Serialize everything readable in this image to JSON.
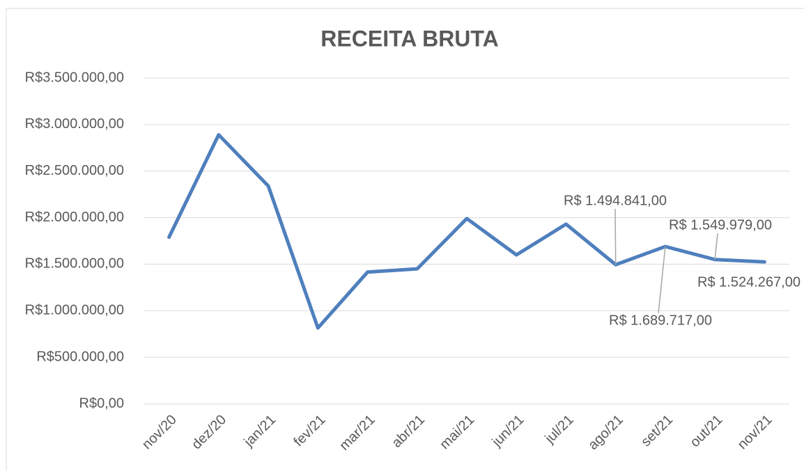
{
  "chart_data": {
    "type": "line",
    "title": "RECEITA BRUTA",
    "categories": [
      "nov/20",
      "dez/20",
      "jan/21",
      "fev/21",
      "mar/21",
      "abr/21",
      "mai/21",
      "jun/21",
      "jul/21",
      "ago/21",
      "set/21",
      "out/21",
      "nov/21"
    ],
    "series": [
      {
        "name": "Receita Bruta",
        "color": "#4f7fbd",
        "values": [
          1790000,
          2890000,
          2340000,
          815000,
          1415000,
          1450000,
          1990000,
          1600000,
          1930000,
          1494841,
          1689717,
          1549979,
          1524267
        ],
        "value_labels": [
          null,
          null,
          null,
          null,
          null,
          null,
          null,
          null,
          null,
          "R$ 1.494.841,00",
          "R$ 1.689.717,00",
          "R$ 1.549.979,00",
          "R$ 1.524.267,00"
        ]
      }
    ],
    "ylim": [
      0,
      3500000
    ],
    "yticks": [
      {
        "value": 0,
        "label": "R$0,00"
      },
      {
        "value": 500000,
        "label": "R$500.000,00"
      },
      {
        "value": 1000000,
        "label": "R$1.000.000,00"
      },
      {
        "value": 1500000,
        "label": "R$1.500.000,00"
      },
      {
        "value": 2000000,
        "label": "R$2.000.000,00"
      },
      {
        "value": 2500000,
        "label": "R$2.500.000,00"
      },
      {
        "value": 3000000,
        "label": "R$3.000.000,00"
      },
      {
        "value": 3500000,
        "label": "R$3.500.000,00"
      }
    ],
    "grid": true
  }
}
